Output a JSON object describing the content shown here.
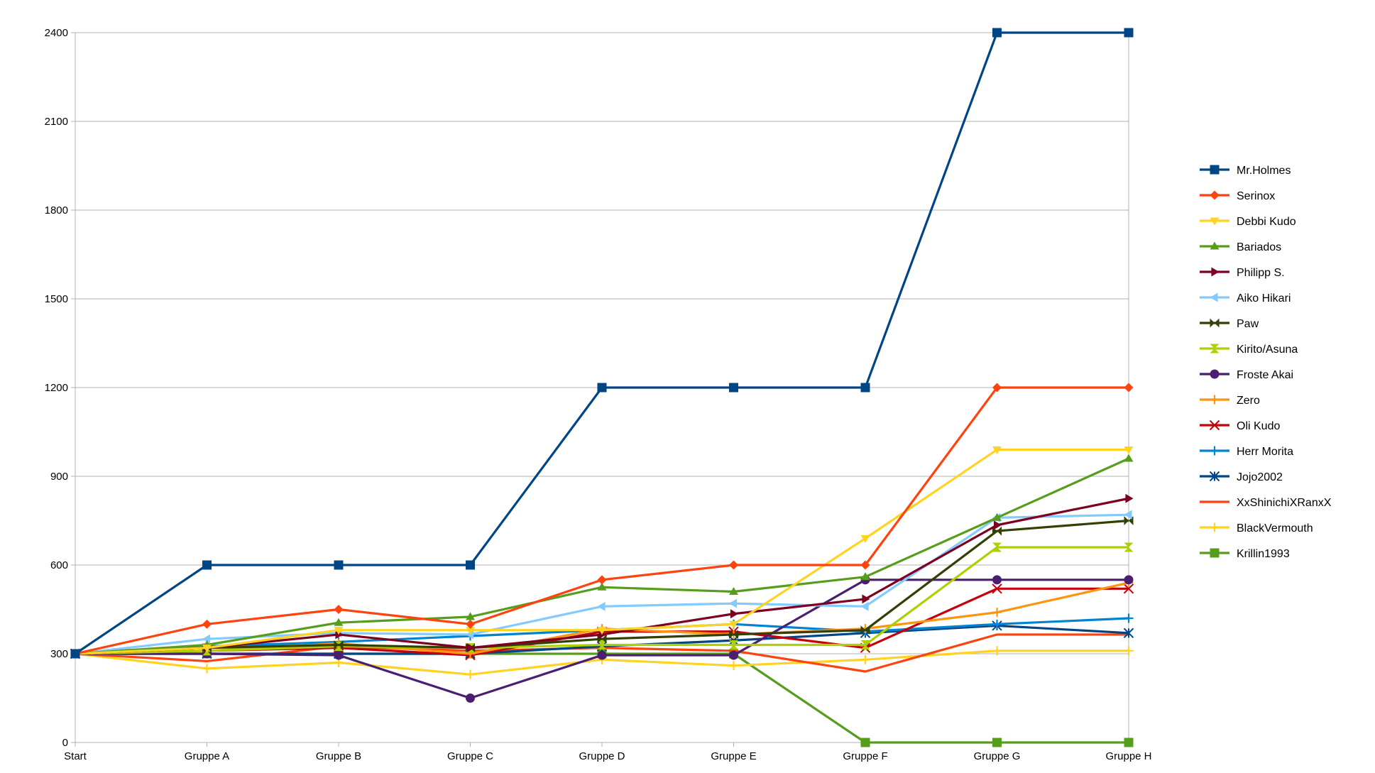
{
  "chart_data": {
    "type": "line",
    "title": "",
    "xlabel": "",
    "ylabel": "",
    "categories": [
      "Start",
      "Gruppe A",
      "Gruppe B",
      "Gruppe C",
      "Gruppe D",
      "Gruppe E",
      "Gruppe F",
      "Gruppe G",
      "Gruppe H"
    ],
    "y_ticks": [
      "0",
      "300",
      "600",
      "900",
      "1200",
      "1500",
      "1800",
      "2100",
      "2400"
    ],
    "ylim": [
      0,
      2400
    ],
    "grid": "horizontal",
    "legend_position": "right",
    "series": [
      {
        "name": "Mr.Holmes",
        "color": "#004586",
        "marker": "square",
        "values": [
          300,
          600,
          600,
          600,
          1200,
          1200,
          1200,
          2400,
          2400
        ]
      },
      {
        "name": "Serinox",
        "color": "#ff420e",
        "marker": "diamond",
        "values": [
          300,
          400,
          450,
          400,
          550,
          600,
          600,
          1200,
          1200
        ]
      },
      {
        "name": "Debbi Kudo",
        "color": "#ffd320",
        "marker": "triangle-down",
        "values": [
          300,
          320,
          380,
          380,
          380,
          400,
          690,
          990,
          990
        ]
      },
      {
        "name": "Bariados",
        "color": "#579d1c",
        "marker": "triangle-up",
        "values": [
          300,
          330,
          405,
          425,
          525,
          510,
          560,
          760,
          960
        ]
      },
      {
        "name": "Philipp S.",
        "color": "#7e0021",
        "marker": "triangle-right",
        "values": [
          300,
          320,
          365,
          320,
          365,
          435,
          485,
          735,
          825
        ]
      },
      {
        "name": "Aiko Hikari",
        "color": "#83caff",
        "marker": "triangle-left",
        "values": [
          300,
          350,
          370,
          365,
          460,
          470,
          460,
          760,
          770
        ]
      },
      {
        "name": "Paw",
        "color": "#314004",
        "marker": "hourglass-x",
        "values": [
          300,
          320,
          330,
          320,
          350,
          365,
          380,
          715,
          750
        ]
      },
      {
        "name": "Kirito/Asuna",
        "color": "#aecf00",
        "marker": "hourglass",
        "values": [
          300,
          310,
          325,
          320,
          330,
          330,
          330,
          660,
          660
        ]
      },
      {
        "name": "Froste Akai",
        "color": "#4b1f6f",
        "marker": "circle",
        "values": [
          300,
          300,
          295,
          150,
          295,
          295,
          550,
          550,
          550
        ]
      },
      {
        "name": "Zero",
        "color": "#ff950e",
        "marker": "plus",
        "values": [
          300,
          310,
          335,
          300,
          385,
          365,
          385,
          440,
          540
        ]
      },
      {
        "name": "Oli Kudo",
        "color": "#c5000b",
        "marker": "x",
        "values": [
          300,
          310,
          320,
          295,
          375,
          375,
          320,
          520,
          520
        ]
      },
      {
        "name": "Herr Morita",
        "color": "#0084d1",
        "marker": "plus",
        "values": [
          300,
          325,
          340,
          360,
          380,
          400,
          375,
          400,
          420
        ]
      },
      {
        "name": "Jojo2002",
        "color": "#004586",
        "marker": "asterisk",
        "values": [
          300,
          300,
          300,
          300,
          325,
          345,
          370,
          395,
          370
        ]
      },
      {
        "name": "XxShinichiXRanxX",
        "color": "#ff420e",
        "marker": "none",
        "values": [
          300,
          275,
          325,
          310,
          320,
          310,
          240,
          365,
          365
        ]
      },
      {
        "name": "BlackVermouth",
        "color": "#ffd320",
        "marker": "plus",
        "values": [
          300,
          250,
          270,
          230,
          280,
          260,
          280,
          310,
          310
        ]
      },
      {
        "name": "Krillin1993",
        "color": "#579d1c",
        "marker": "square",
        "values": [
          300,
          300,
          300,
          300,
          300,
          300,
          0,
          0,
          0
        ]
      }
    ]
  }
}
